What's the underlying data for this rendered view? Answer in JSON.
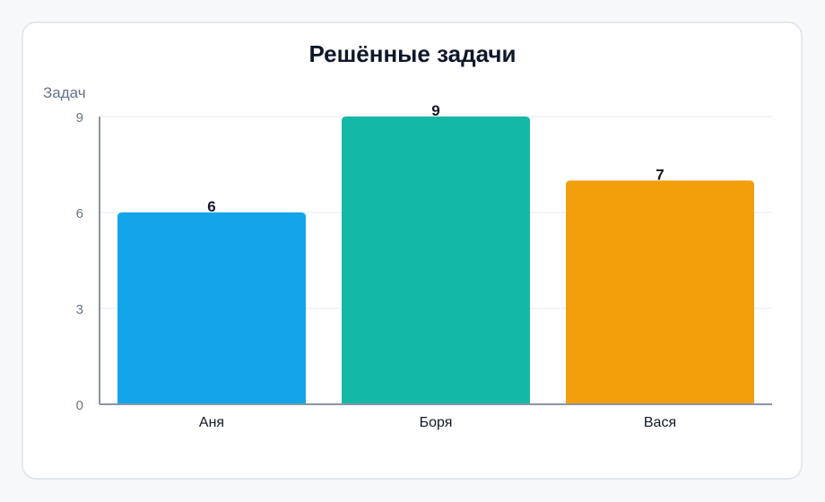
{
  "chart_data": {
    "type": "bar",
    "title": "Решённые задачи",
    "ylabel": "Задач",
    "xlabel": "",
    "categories": [
      "Аня",
      "Боря",
      "Вася"
    ],
    "values": [
      6,
      9,
      7
    ],
    "colors": [
      "#12a5e9",
      "#14b8a6",
      "#f39f0c"
    ],
    "ylim": [
      0,
      9
    ],
    "yticks": [
      0,
      3,
      6,
      9
    ],
    "grid": true,
    "data_labels": true
  }
}
